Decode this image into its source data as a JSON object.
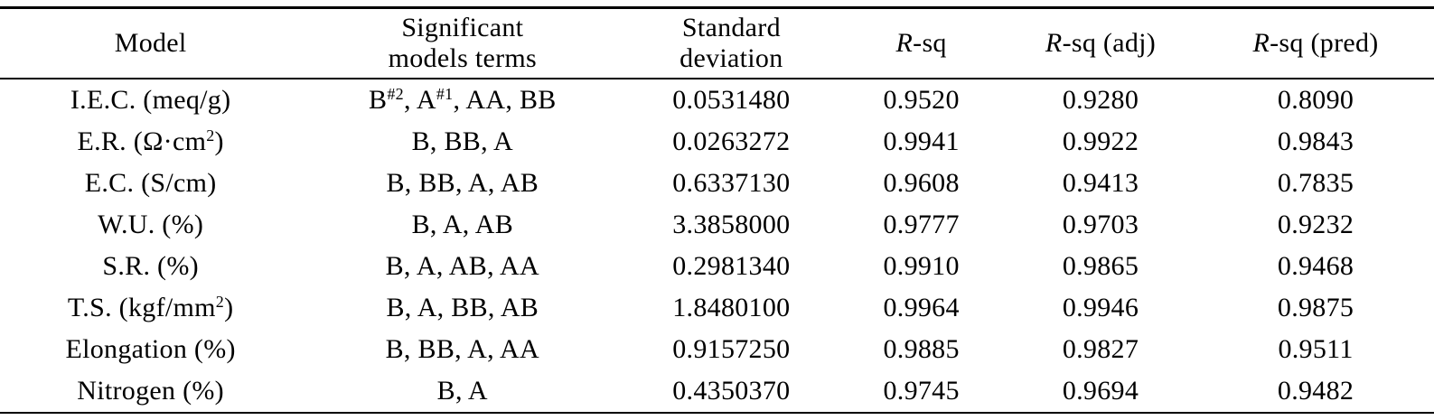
{
  "table": {
    "header": {
      "model": "Model",
      "terms_line1": "Significant",
      "terms_line2": "models terms",
      "std_line1": "Standard",
      "std_line2": "deviation",
      "rsq_italic": "R",
      "rsq_rest": "-sq",
      "rsq_adj_italic": "R",
      "rsq_adj_rest": "-sq (adj)",
      "rsq_pred_italic": "R",
      "rsq_pred_rest": "-sq (pred)"
    },
    "rows": [
      {
        "model": [
          {
            "text": "I.E.C. (meq/g)"
          }
        ],
        "terms": [
          {
            "text": "B"
          },
          {
            "sup": "#2"
          },
          {
            "text": ", A"
          },
          {
            "sup": "#1"
          },
          {
            "text": ", AA, BB"
          }
        ],
        "std": "0.0531480",
        "rsq": "0.9520",
        "rsq_adj": "0.9280",
        "rsq_pred": "0.8090"
      },
      {
        "model": [
          {
            "text": "E.R. (Ω·cm"
          },
          {
            "sup": "2"
          },
          {
            "text": ")"
          }
        ],
        "terms": [
          {
            "text": "B, BB, A"
          }
        ],
        "std": "0.0263272",
        "rsq": "0.9941",
        "rsq_adj": "0.9922",
        "rsq_pred": "0.9843"
      },
      {
        "model": [
          {
            "text": "E.C. (S/cm)"
          }
        ],
        "terms": [
          {
            "text": "B, BB, A, AB"
          }
        ],
        "std": "0.6337130",
        "rsq": "0.9608",
        "rsq_adj": "0.9413",
        "rsq_pred": "0.7835"
      },
      {
        "model": [
          {
            "text": "W.U. (%)"
          }
        ],
        "terms": [
          {
            "text": "B, A, AB"
          }
        ],
        "std": "3.3858000",
        "rsq": "0.9777",
        "rsq_adj": "0.9703",
        "rsq_pred": "0.9232"
      },
      {
        "model": [
          {
            "text": "S.R. (%)"
          }
        ],
        "terms": [
          {
            "text": "B, A, AB, AA"
          }
        ],
        "std": "0.2981340",
        "rsq": "0.9910",
        "rsq_adj": "0.9865",
        "rsq_pred": "0.9468"
      },
      {
        "model": [
          {
            "text": "T.S. (kgf/mm"
          },
          {
            "sup": "2"
          },
          {
            "text": ")"
          }
        ],
        "terms": [
          {
            "text": "B, A, BB, AB"
          }
        ],
        "std": "1.8480100",
        "rsq": "0.9964",
        "rsq_adj": "0.9946",
        "rsq_pred": "0.9875"
      },
      {
        "model": [
          {
            "text": "Elongation (%)"
          }
        ],
        "terms": [
          {
            "text": "B, BB, A, AA"
          }
        ],
        "std": "0.9157250",
        "rsq": "0.9885",
        "rsq_adj": "0.9827",
        "rsq_pred": "0.9511"
      },
      {
        "model": [
          {
            "text": "Nitrogen (%)"
          }
        ],
        "terms": [
          {
            "text": "B, A"
          }
        ],
        "std": "0.4350370",
        "rsq": "0.9745",
        "rsq_adj": "0.9694",
        "rsq_pred": "0.9482"
      }
    ]
  }
}
